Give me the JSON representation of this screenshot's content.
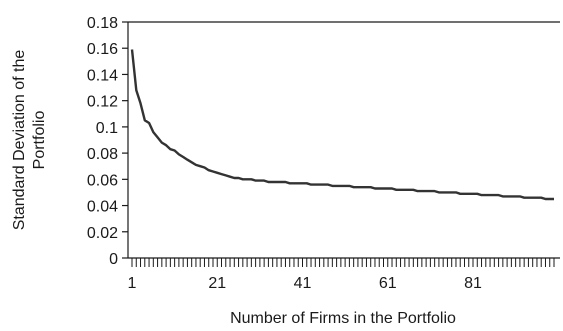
{
  "chart_data": {
    "type": "line",
    "title": "",
    "xlabel": "Number of Firms in the Portfolio",
    "ylabel": "Standard Deviation of the Portfolio",
    "ylabel_lines": [
      "Standard Deviation of the",
      "Portfolio"
    ],
    "xlim": [
      1,
      100
    ],
    "ylim": [
      0,
      0.18
    ],
    "x_ticks": [
      1,
      21,
      41,
      61,
      81
    ],
    "y_ticks": [
      "0",
      "0.02",
      "0.04",
      "0.06",
      "0.08",
      "0.1",
      "0.12",
      "0.14",
      "0.16",
      "0.18"
    ],
    "grid": false,
    "line_color": "#333333",
    "series": [
      {
        "x": [
          1,
          2,
          3,
          4,
          5,
          6,
          7,
          8,
          9,
          10,
          11,
          12,
          13,
          14,
          15,
          16,
          17,
          18,
          19,
          20,
          21,
          22,
          23,
          24,
          25,
          26,
          27,
          28,
          29,
          30,
          31,
          32,
          33,
          34,
          35,
          36,
          37,
          38,
          39,
          40,
          41,
          42,
          43,
          44,
          45,
          46,
          47,
          48,
          49,
          50,
          51,
          52,
          53,
          54,
          55,
          56,
          57,
          58,
          59,
          60,
          61,
          62,
          63,
          64,
          65,
          66,
          67,
          68,
          69,
          70,
          71,
          72,
          73,
          74,
          75,
          76,
          77,
          78,
          79,
          80,
          81,
          82,
          83,
          84,
          85,
          86,
          87,
          88,
          89,
          90,
          91,
          92,
          93,
          94,
          95,
          96,
          97,
          98,
          99,
          100
        ],
        "values": [
          0.159,
          0.128,
          0.118,
          0.105,
          0.103,
          0.096,
          0.092,
          0.088,
          0.086,
          0.083,
          0.082,
          0.079,
          0.077,
          0.075,
          0.073,
          0.071,
          0.07,
          0.069,
          0.067,
          0.066,
          0.065,
          0.064,
          0.063,
          0.062,
          0.061,
          0.061,
          0.06,
          0.06,
          0.06,
          0.059,
          0.059,
          0.059,
          0.058,
          0.058,
          0.058,
          0.058,
          0.058,
          0.057,
          0.057,
          0.057,
          0.057,
          0.057,
          0.056,
          0.056,
          0.056,
          0.056,
          0.056,
          0.055,
          0.055,
          0.055,
          0.055,
          0.055,
          0.054,
          0.054,
          0.054,
          0.054,
          0.054,
          0.053,
          0.053,
          0.053,
          0.053,
          0.053,
          0.052,
          0.052,
          0.052,
          0.052,
          0.052,
          0.051,
          0.051,
          0.051,
          0.051,
          0.051,
          0.05,
          0.05,
          0.05,
          0.05,
          0.05,
          0.049,
          0.049,
          0.049,
          0.049,
          0.049,
          0.048,
          0.048,
          0.048,
          0.048,
          0.048,
          0.047,
          0.047,
          0.047,
          0.047,
          0.047,
          0.046,
          0.046,
          0.046,
          0.046,
          0.046,
          0.045,
          0.045,
          0.045
        ]
      }
    ]
  }
}
